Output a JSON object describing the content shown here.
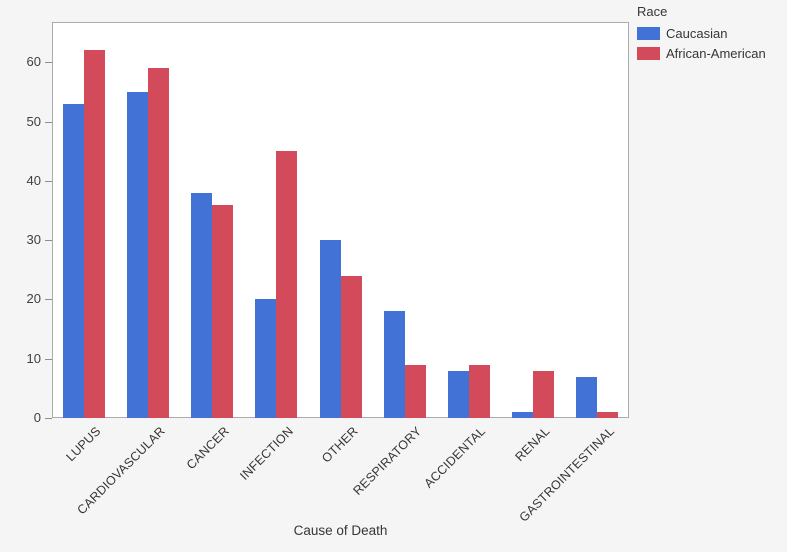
{
  "chart_data": {
    "type": "bar",
    "title": "",
    "xlabel": "Cause of Death",
    "ylabel": "",
    "legend_title": "Race",
    "legend_position": "top-right",
    "grid": false,
    "categories": [
      "LUPUS",
      "CARDIOVASCULAR",
      "CANCER",
      "INFECTION",
      "OTHER",
      "RESPIRATORY",
      "ACCIDENTAL",
      "RENAL",
      "GASTROINTESTINAL"
    ],
    "series": [
      {
        "name": "Caucasian",
        "color": "#4272d5",
        "values": [
          53,
          55,
          38,
          20,
          30,
          18,
          8,
          1,
          7
        ]
      },
      {
        "name": "African-American",
        "color": "#d34a5a",
        "values": [
          62,
          59,
          36,
          45,
          24,
          9,
          9,
          8,
          1
        ]
      }
    ],
    "y_ticks": [
      0,
      10,
      20,
      30,
      40,
      50,
      60
    ],
    "ylim": [
      0,
      66.8
    ]
  },
  "colors": {
    "background": "#f5f5f6",
    "plot_background": "#ffffff",
    "plot_border": "#ababab",
    "tick_mark": "#8e8e8e",
    "text": "#363636"
  },
  "layout_labels": {
    "caucasian_swatch": "caucasian-color",
    "african_american_swatch": "african-american-color"
  }
}
